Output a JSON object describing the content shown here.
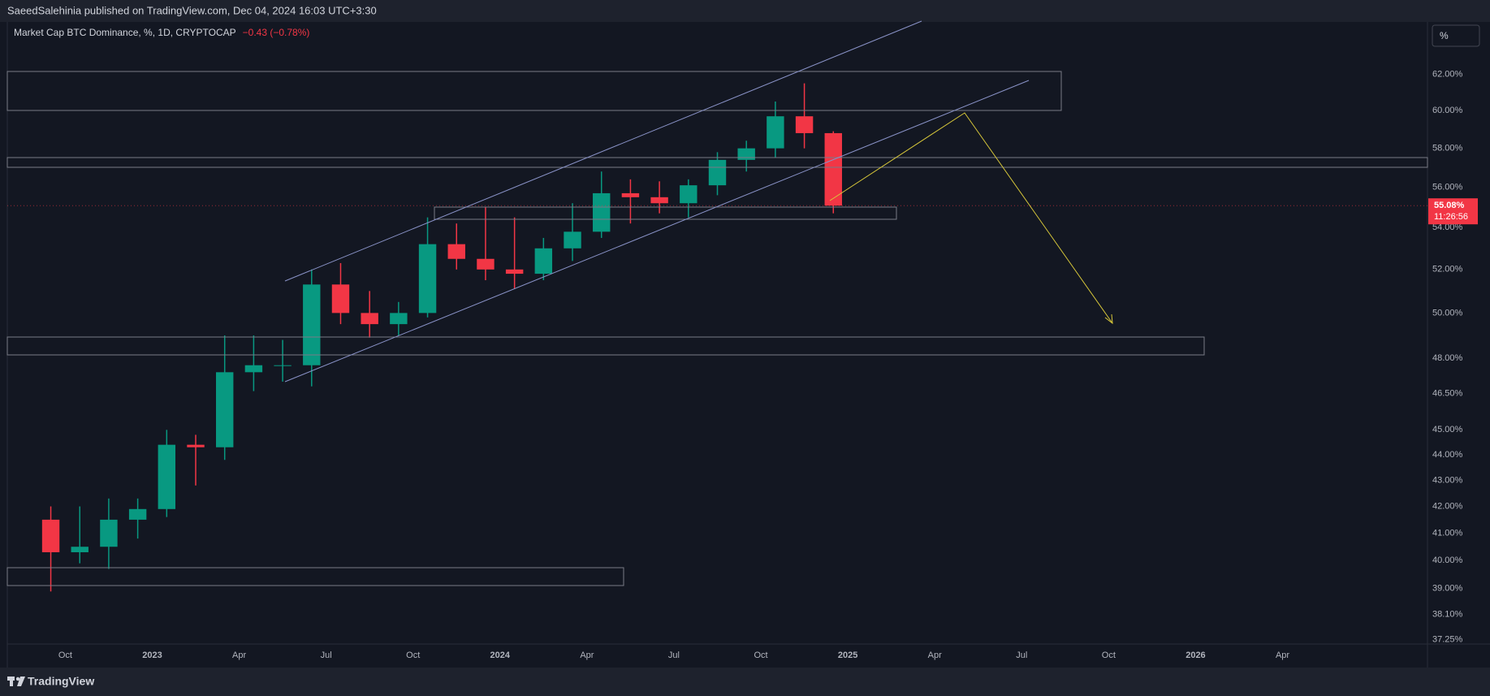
{
  "header": {
    "publisher": "SaeedSalehinia published on TradingView.com, Dec 04, 2024 16:03 UTC+3:30"
  },
  "scale_button": "%",
  "footer": {
    "brand": "TradingView"
  },
  "chart_data": {
    "type": "candlestick",
    "title": "Market Cap BTC Dominance, %, 1D, CRYPTOCAP",
    "change": "−0.43 (−0.78%)",
    "x": [
      "2022-09",
      "2022-10",
      "2022-11",
      "2022-12",
      "2023-01",
      "2023-02",
      "2023-03",
      "2023-04",
      "2023-05",
      "2023-06",
      "2023-07",
      "2023-08",
      "2023-09",
      "2023-10",
      "2023-11",
      "2023-12",
      "2024-01",
      "2024-02",
      "2024-03",
      "2024-04",
      "2024-05",
      "2024-06",
      "2024-07",
      "2024-08",
      "2024-09",
      "2024-10",
      "2024-11",
      "2024-12"
    ],
    "open": [
      41.5,
      40.3,
      40.5,
      41.5,
      41.9,
      44.4,
      44.3,
      47.4,
      47.7,
      47.7,
      51.3,
      50.0,
      49.5,
      50.0,
      53.2,
      52.5,
      52.0,
      51.8,
      53.0,
      53.8,
      55.7,
      55.5,
      55.2,
      56.1,
      57.4,
      58.0,
      59.7,
      58.8
    ],
    "high": [
      42.0,
      42.0,
      42.3,
      42.3,
      45.0,
      44.8,
      49.0,
      49.0,
      48.8,
      52.0,
      52.3,
      51.0,
      50.5,
      54.5,
      54.2,
      55.0,
      54.5,
      53.5,
      55.2,
      56.8,
      56.4,
      56.3,
      56.4,
      57.8,
      58.4,
      60.5,
      61.5,
      58.9
    ],
    "low": [
      38.9,
      39.9,
      39.7,
      40.8,
      41.6,
      42.8,
      43.8,
      46.6,
      47.0,
      46.8,
      49.5,
      48.9,
      49.0,
      49.8,
      52.0,
      51.5,
      51.1,
      51.5,
      52.4,
      53.5,
      54.2,
      54.7,
      54.5,
      55.6,
      56.8,
      57.5,
      58.0,
      54.7
    ],
    "close": [
      40.3,
      40.5,
      41.5,
      41.9,
      44.4,
      44.3,
      47.4,
      47.7,
      47.7,
      51.3,
      50.0,
      49.5,
      50.0,
      53.2,
      52.5,
      52.0,
      51.8,
      53.0,
      53.8,
      55.7,
      55.5,
      55.2,
      56.1,
      57.4,
      58.0,
      59.7,
      58.8,
      55.08
    ],
    "up_color": "#089981",
    "down_color": "#f23645",
    "last_price": {
      "value": 55.08,
      "label": "55.08%"
    },
    "countdown": "11:26:56",
    "log_scale": true,
    "grid": false,
    "xlim": [
      "2022-08",
      "2026-09"
    ],
    "xticks": [
      {
        "value": "2022-10",
        "label": "Oct"
      },
      {
        "value": "2023-01",
        "label": "2023"
      },
      {
        "value": "2023-04",
        "label": "Apr"
      },
      {
        "value": "2023-07",
        "label": "Jul"
      },
      {
        "value": "2023-10",
        "label": "Oct"
      },
      {
        "value": "2024-01",
        "label": "2024"
      },
      {
        "value": "2024-04",
        "label": "Apr"
      },
      {
        "value": "2024-07",
        "label": "Jul"
      },
      {
        "value": "2024-10",
        "label": "Oct"
      },
      {
        "value": "2025-01",
        "label": "2025"
      },
      {
        "value": "2025-04",
        "label": "Apr"
      },
      {
        "value": "2025-07",
        "label": "Jul"
      },
      {
        "value": "2025-10",
        "label": "Oct"
      },
      {
        "value": "2026-01",
        "label": "2026"
      },
      {
        "value": "2026-04",
        "label": "Apr"
      }
    ],
    "ylim": [
      37.1,
      65
    ],
    "yticks": [
      {
        "value": 62,
        "label": "62.00%"
      },
      {
        "value": 60,
        "label": "60.00%"
      },
      {
        "value": 58,
        "label": "58.00%"
      },
      {
        "value": 56,
        "label": "56.00%"
      },
      {
        "value": 54,
        "label": "54.00%"
      },
      {
        "value": 52,
        "label": "52.00%"
      },
      {
        "value": 50,
        "label": "50.00%"
      },
      {
        "value": 48,
        "label": "48.00%"
      },
      {
        "value": 46.5,
        "label": "46.50%"
      },
      {
        "value": 45,
        "label": "45.00%"
      },
      {
        "value": 44,
        "label": "44.00%"
      },
      {
        "value": 43,
        "label": "43.00%"
      },
      {
        "value": 42,
        "label": "42.00%"
      },
      {
        "value": 41,
        "label": "41.00%"
      },
      {
        "value": 40,
        "label": "40.00%"
      },
      {
        "value": 39,
        "label": "39.00%"
      },
      {
        "value": 38.1,
        "label": "38.10%"
      },
      {
        "value": 37.25,
        "label": "37.25%"
      }
    ]
  }
}
